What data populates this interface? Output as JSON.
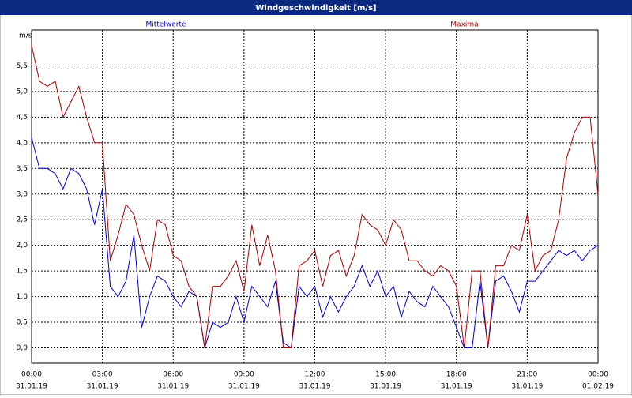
{
  "window_title": "Windgeschwindigkeit [m/s]",
  "chart_data": {
    "type": "line",
    "y_unit": "m/s",
    "x": [
      0,
      0.3333,
      0.6667,
      1,
      1.3333,
      1.6667,
      2,
      2.3333,
      2.6667,
      3,
      3.3333,
      3.6667,
      4,
      4.3333,
      4.6667,
      5,
      5.3333,
      5.6667,
      6,
      6.3333,
      6.6667,
      7,
      7.3333,
      7.6667,
      8,
      8.3333,
      8.6667,
      9,
      9.3333,
      9.6667,
      10,
      10.3333,
      10.6667,
      11,
      11.3333,
      11.6667,
      12,
      12.3333,
      12.6667,
      13,
      13.3333,
      13.6667,
      14,
      14.3333,
      14.6667,
      15,
      15.3333,
      15.6667,
      16,
      16.3333,
      16.6667,
      17,
      17.3333,
      17.6667,
      18,
      18.3333,
      18.6667,
      19,
      19.3333,
      19.6667,
      20,
      20.3333,
      20.6667,
      21,
      21.3333,
      21.6667,
      22,
      22.3333,
      22.6667,
      23,
      23.3333,
      23.6667,
      24
    ],
    "series": [
      {
        "name": "Mittelwerte",
        "color": "#0000cc",
        "values": [
          4.1,
          3.5,
          3.5,
          3.4,
          3.1,
          3.5,
          3.4,
          3.1,
          2.4,
          3.1,
          1.2,
          1.0,
          1.3,
          2.2,
          0.4,
          1.0,
          1.4,
          1.3,
          1.0,
          0.8,
          1.1,
          1.0,
          0.0,
          0.5,
          0.4,
          0.5,
          1.0,
          0.5,
          1.2,
          1.0,
          0.8,
          1.3,
          0.1,
          0.0,
          1.2,
          1.0,
          1.2,
          0.6,
          1.0,
          0.7,
          1.0,
          1.2,
          1.6,
          1.2,
          1.5,
          1.0,
          1.2,
          0.6,
          1.1,
          0.9,
          0.8,
          1.2,
          1.0,
          0.8,
          0.4,
          0.0,
          0.0,
          1.3,
          0.0,
          1.3,
          1.4,
          1.1,
          0.7,
          1.3,
          1.3,
          1.5,
          1.7,
          1.9,
          1.8,
          1.9,
          1.7,
          1.9,
          2.0
        ]
      },
      {
        "name": "Maxima",
        "color": "#aa0000",
        "values": [
          5.9,
          5.2,
          5.1,
          5.2,
          4.5,
          4.8,
          5.1,
          4.5,
          4.0,
          4.0,
          1.7,
          2.2,
          2.8,
          2.6,
          2.0,
          1.5,
          2.5,
          2.4,
          1.8,
          1.7,
          1.2,
          1.0,
          0.0,
          1.2,
          1.2,
          1.4,
          1.7,
          1.1,
          2.4,
          1.6,
          2.2,
          1.5,
          0.0,
          0.0,
          1.6,
          1.7,
          1.9,
          1.2,
          1.8,
          1.9,
          1.4,
          1.8,
          2.6,
          2.4,
          2.3,
          2.0,
          2.5,
          2.3,
          1.7,
          1.7,
          1.5,
          1.4,
          1.6,
          1.5,
          1.2,
          0.0,
          1.5,
          1.5,
          0.0,
          1.6,
          1.6,
          2.0,
          1.9,
          2.6,
          1.5,
          1.8,
          1.9,
          2.5,
          3.7,
          4.2,
          4.5,
          4.5,
          3.0
        ]
      }
    ],
    "xlim": [
      0,
      24
    ],
    "xticks": [
      {
        "value": 0,
        "label": "00:00"
      },
      {
        "value": 3,
        "label": "03:00"
      },
      {
        "value": 6,
        "label": "06:00"
      },
      {
        "value": 9,
        "label": "09:00"
      },
      {
        "value": 12,
        "label": "12:00"
      },
      {
        "value": 15,
        "label": "15:00"
      },
      {
        "value": 18,
        "label": "18:00"
      },
      {
        "value": 21,
        "label": "21:00"
      },
      {
        "value": 24,
        "label": "00:00"
      }
    ],
    "xtick_dates": [
      "31.01.19",
      "31.01.19",
      "31.01.19",
      "31.01.19",
      "31.01.19",
      "31.01.19",
      "31.01.19",
      "31.01.19",
      "01.02.19"
    ],
    "ylim": [
      -0.3,
      6.2
    ],
    "yticks": [
      {
        "value": 0,
        "label": "0,0"
      },
      {
        "value": 0.5,
        "label": "0,5"
      },
      {
        "value": 1,
        "label": "1,0"
      },
      {
        "value": 1.5,
        "label": "1,5"
      },
      {
        "value": 2,
        "label": "2,0"
      },
      {
        "value": 2.5,
        "label": "2,5"
      },
      {
        "value": 3,
        "label": "3,0"
      },
      {
        "value": 3.5,
        "label": "3,5"
      },
      {
        "value": 4,
        "label": "4,0"
      },
      {
        "value": 4.5,
        "label": "4,5"
      },
      {
        "value": 5,
        "label": "5,0"
      },
      {
        "value": 5.5,
        "label": "5,5"
      }
    ],
    "grid": true
  }
}
